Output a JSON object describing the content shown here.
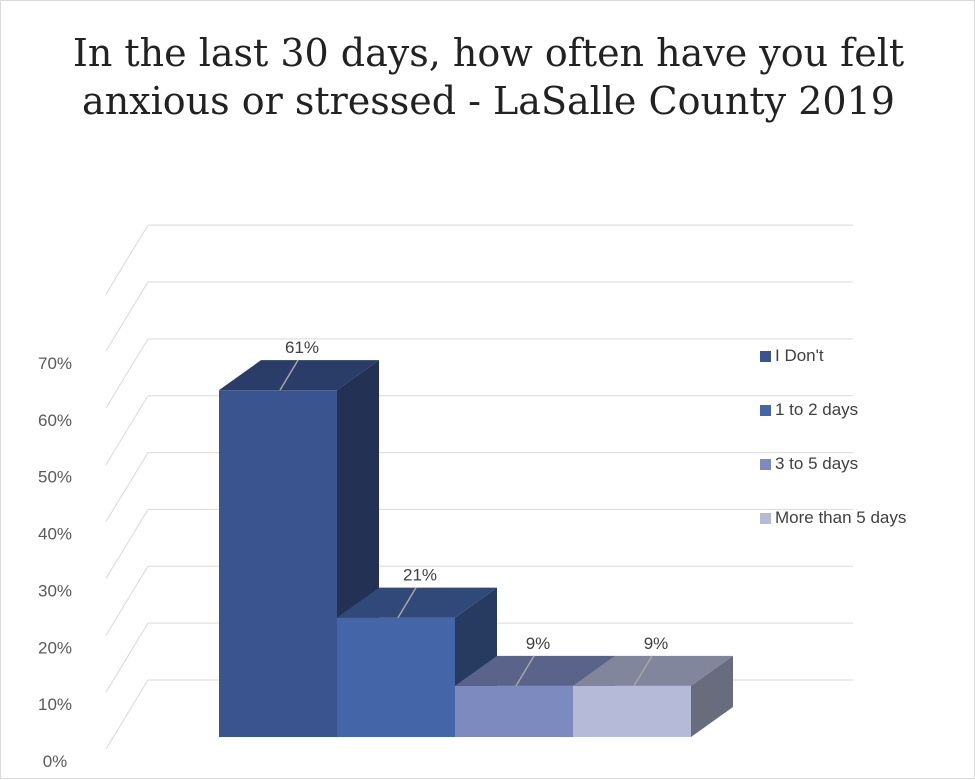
{
  "chart_data": {
    "type": "bar",
    "title": "In the last 30 days, how often have you felt anxious or stressed - LaSalle County 2019",
    "categories": [
      "I Don't",
      "1 to 2 days",
      "3 to 5 days",
      "More than 5 days"
    ],
    "values": [
      61,
      21,
      9,
      9
    ],
    "value_labels": [
      "61%",
      "21%",
      "9%",
      "9%"
    ],
    "yticks": [
      "0%",
      "10%",
      "20%",
      "30%",
      "40%",
      "50%",
      "60%",
      "70%"
    ],
    "ylim": [
      0,
      70
    ],
    "y_unit": "%",
    "grid": true,
    "three_d": true,
    "legend_position": "right",
    "colors": [
      "#3a5490",
      "#4465a8",
      "#7d8abf",
      "#b5bad8"
    ]
  }
}
